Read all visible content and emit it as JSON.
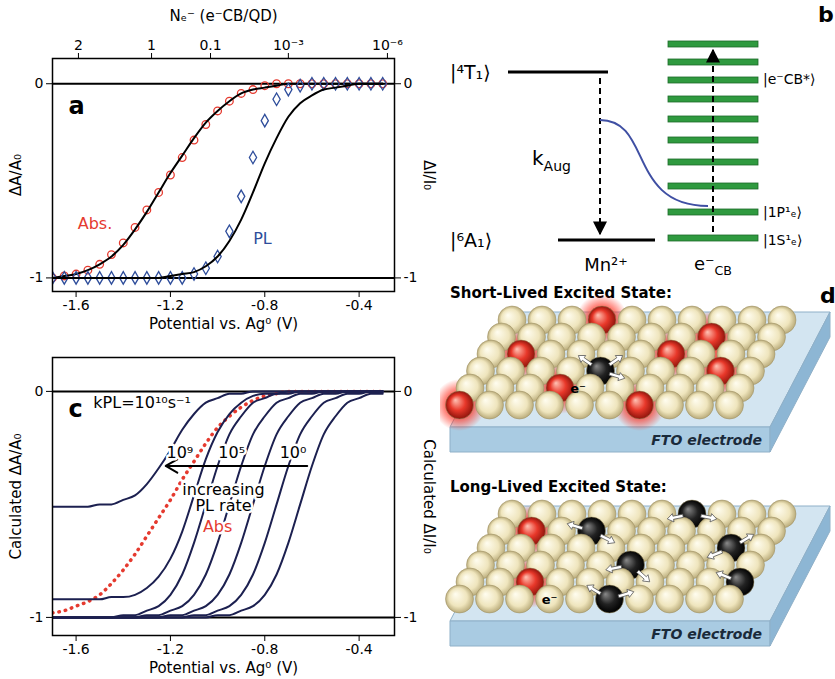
{
  "chart_data": [
    {
      "panel": "a",
      "type": "line",
      "x": [
        -1.7,
        -1.65,
        -1.6,
        -1.55,
        -1.5,
        -1.45,
        -1.4,
        -1.35,
        -1.3,
        -1.25,
        -1.2,
        -1.15,
        -1.1,
        -1.05,
        -1.0,
        -0.95,
        -0.9,
        -0.85,
        -0.8,
        -0.75,
        -0.7,
        -0.65,
        -0.6,
        -0.55,
        -0.5,
        -0.45,
        -0.4,
        -0.35,
        -0.3
      ],
      "xlim": [
        -1.7,
        -0.25
      ],
      "xticks": [
        -1.6,
        -1.2,
        -0.8,
        -0.4
      ],
      "xlabel": "Potential vs. Ag⁰ (V)",
      "ylim": [
        -1.07,
        0.13
      ],
      "yticks": [
        -1,
        0
      ],
      "ylabel": "ΔA/A₀",
      "y2lim": [
        -1.07,
        0.13
      ],
      "y2ticks": [
        -1,
        0
      ],
      "y2label": "ΔI/I₀",
      "top_axis": {
        "label": "Nₑ⁻ (e⁻CB/QD)",
        "ticks": [
          {
            "value": -1.59,
            "label": "2"
          },
          {
            "value": -1.28,
            "label": "1"
          },
          {
            "value": -1.03,
            "label": "0.1"
          },
          {
            "value": -0.7,
            "label": "10⁻³"
          },
          {
            "value": -0.28,
            "label": "10⁻⁶"
          }
        ]
      },
      "grid": true,
      "series": [
        {
          "name": "Abs.",
          "type": "scatter",
          "marker": "circle",
          "color": "#e53a2f",
          "label_x": -1.52,
          "label_y": -0.72,
          "values": [
            -1.0,
            -0.99,
            -0.98,
            -0.96,
            -0.93,
            -0.88,
            -0.82,
            -0.74,
            -0.65,
            -0.56,
            -0.47,
            -0.38,
            -0.29,
            -0.21,
            -0.14,
            -0.09,
            -0.05,
            -0.03,
            -0.01,
            0,
            0,
            0,
            0,
            0,
            0,
            0,
            0,
            0,
            0
          ]
        },
        {
          "type": "line",
          "color": "#000000",
          "values": [
            -1.0,
            -0.99,
            -0.98,
            -0.96,
            -0.93,
            -0.89,
            -0.83,
            -0.75,
            -0.66,
            -0.56,
            -0.46,
            -0.37,
            -0.28,
            -0.2,
            -0.14,
            -0.09,
            -0.05,
            -0.03,
            -0.02,
            -0.01,
            0,
            0,
            0,
            0,
            0,
            0,
            0,
            0,
            0
          ]
        },
        {
          "name": "PL",
          "type": "scatter",
          "marker": "diamond",
          "color": "#2e4d9b",
          "axis": "y2",
          "label_x": -0.81,
          "label_y": -0.8,
          "values": [
            -1,
            -1,
            -1,
            -1,
            -1,
            -1,
            -1,
            -1,
            -1,
            -1,
            -1,
            -1,
            -0.98,
            -0.95,
            -0.89,
            -0.76,
            -0.58,
            -0.38,
            -0.19,
            -0.08,
            -0.03,
            -0.01,
            0,
            0,
            0,
            0,
            0,
            0,
            0
          ]
        },
        {
          "type": "line",
          "color": "#000000",
          "axis": "y2",
          "values": [
            -1,
            -1,
            -1,
            -1,
            -1,
            -1,
            -1,
            -1,
            -1,
            -1,
            -0.99,
            -0.98,
            -0.97,
            -0.94,
            -0.89,
            -0.81,
            -0.7,
            -0.56,
            -0.41,
            -0.28,
            -0.17,
            -0.1,
            -0.06,
            -0.03,
            -0.02,
            -0.01,
            0,
            0,
            0
          ]
        }
      ]
    },
    {
      "panel": "c",
      "type": "line",
      "x": [
        -1.7,
        -1.65,
        -1.6,
        -1.55,
        -1.5,
        -1.45,
        -1.4,
        -1.35,
        -1.3,
        -1.25,
        -1.2,
        -1.15,
        -1.1,
        -1.05,
        -1.0,
        -0.95,
        -0.9,
        -0.85,
        -0.8,
        -0.75,
        -0.7,
        -0.65,
        -0.6,
        -0.55,
        -0.5,
        -0.45,
        -0.4,
        -0.35,
        -0.3
      ],
      "xlim": [
        -1.7,
        -0.25
      ],
      "xticks": [
        -1.6,
        -1.2,
        -0.8,
        -0.4
      ],
      "xlabel": "Potential vs. Ag⁰ (V)",
      "ylim": [
        -1.08,
        0.15
      ],
      "yticks": [
        -1,
        0
      ],
      "ylabel": "Calculated ΔA/A₀",
      "y2lim": [
        -1.08,
        0.15
      ],
      "y2ticks": [
        -1,
        0
      ],
      "y2label": "Calculated ΔI/I₀",
      "grid": true,
      "series": [
        {
          "name": "Abs",
          "type": "line",
          "line_style": "dotted",
          "color": "#e53a2f",
          "label_x": -1.0,
          "label_y": -0.6,
          "values": [
            -0.98,
            -0.97,
            -0.95,
            -0.93,
            -0.9,
            -0.85,
            -0.79,
            -0.72,
            -0.64,
            -0.56,
            -0.48,
            -0.39,
            -0.31,
            -0.23,
            -0.16,
            -0.11,
            -0.07,
            -0.04,
            -0.02,
            -0.01,
            0,
            0,
            0,
            0,
            0,
            0,
            0,
            0,
            0
          ]
        },
        {
          "type": "line",
          "color": "#1c2050",
          "axis": "y2",
          "values": [
            -0.51,
            -0.51,
            -0.51,
            -0.51,
            -0.5,
            -0.5,
            -0.48,
            -0.46,
            -0.41,
            -0.34,
            -0.26,
            -0.17,
            -0.1,
            -0.05,
            -0.03,
            -0.01,
            -0.01,
            0,
            0,
            0,
            0,
            0,
            0,
            0,
            0,
            0,
            0,
            0,
            0
          ]
        },
        {
          "type": "line",
          "color": "#1c2050",
          "axis": "y2",
          "values": [
            -0.92,
            -0.92,
            -0.92,
            -0.92,
            -0.92,
            -0.91,
            -0.91,
            -0.9,
            -0.87,
            -0.82,
            -0.74,
            -0.62,
            -0.46,
            -0.3,
            -0.18,
            -0.1,
            -0.05,
            -0.02,
            -0.01,
            -0.01,
            0,
            0,
            0,
            0,
            0,
            0,
            0,
            0,
            0
          ]
        },
        {
          "type": "line",
          "color": "#1c2050",
          "axis": "y2",
          "values": [
            -1,
            -1,
            -1,
            -1,
            -1,
            -1,
            -0.99,
            -0.99,
            -0.97,
            -0.95,
            -0.9,
            -0.81,
            -0.67,
            -0.5,
            -0.33,
            -0.19,
            -0.11,
            -0.05,
            -0.03,
            -0.01,
            -0.01,
            0,
            0,
            0,
            0,
            0,
            0,
            0,
            0
          ]
        },
        {
          "type": "line",
          "color": "#1c2050",
          "axis": "y2",
          "values": [
            -1,
            -1,
            -1,
            -1,
            -1,
            -1,
            -1,
            -1,
            -0.99,
            -0.99,
            -0.97,
            -0.95,
            -0.9,
            -0.81,
            -0.67,
            -0.5,
            -0.33,
            -0.19,
            -0.11,
            -0.05,
            -0.03,
            -0.01,
            -0.01,
            0,
            0,
            0,
            0,
            0,
            0
          ]
        },
        {
          "type": "line",
          "color": "#1c2050",
          "axis": "y2",
          "values": [
            -1,
            -1,
            -1,
            -1,
            -1,
            -1,
            -1,
            -1,
            -1,
            -1,
            -0.99,
            -0.99,
            -0.97,
            -0.95,
            -0.9,
            -0.81,
            -0.67,
            -0.5,
            -0.33,
            -0.19,
            -0.11,
            -0.05,
            -0.03,
            -0.01,
            -0.01,
            0,
            0,
            0,
            0
          ]
        },
        {
          "type": "line",
          "color": "#1c2050",
          "axis": "y2",
          "values": [
            -1,
            -1,
            -1,
            -1,
            -1,
            -1,
            -1,
            -1,
            -1,
            -1,
            -1,
            -1,
            -0.99,
            -0.99,
            -0.97,
            -0.95,
            -0.9,
            -0.81,
            -0.67,
            -0.5,
            -0.33,
            -0.19,
            -0.11,
            -0.05,
            -0.03,
            -0.01,
            -0.01,
            0,
            0
          ]
        },
        {
          "type": "line",
          "color": "#1c2050",
          "axis": "y2",
          "values": [
            -1,
            -1,
            -1,
            -1,
            -1,
            -1,
            -1,
            -1,
            -1,
            -1,
            -1,
            -1,
            -1,
            -1,
            -0.99,
            -0.99,
            -0.97,
            -0.95,
            -0.9,
            -0.81,
            -0.67,
            -0.5,
            -0.33,
            -0.19,
            -0.11,
            -0.05,
            -0.03,
            -0.01,
            -0.01
          ]
        }
      ],
      "annotations": [
        {
          "text": "kPL=10¹⁰s⁻¹",
          "x": -1.32,
          "y": -0.05,
          "color": "#000000"
        },
        {
          "text": "10⁹",
          "x": -1.16,
          "y": -0.27,
          "color": "#000000"
        },
        {
          "text": "10⁵",
          "x": -0.94,
          "y": -0.27,
          "color": "#000000"
        },
        {
          "text": "10⁰",
          "x": -0.68,
          "y": -0.27,
          "color": "#000000"
        },
        {
          "text": "increasing PL rate",
          "x": -0.975,
          "y": -0.47,
          "color": "#000000"
        }
      ],
      "arrow": {
        "x1": -0.62,
        "x2": -1.22,
        "y": -0.33
      }
    }
  ],
  "diagram_b": {
    "panel": "b",
    "mn_states": [
      "|⁴T₁⟩",
      "|⁶A₁⟩"
    ],
    "ion": "Mn²⁺",
    "rate": {
      "symbol": "k",
      "subscript": "Aug"
    },
    "cb_states": [
      "|e⁻CB*⟩",
      "|1P¹ₑ⟩",
      "|1S¹ₑ⟩"
    ],
    "carrier": {
      "symbol": "e⁻",
      "subscript": "CB"
    }
  },
  "diagram_d": {
    "panel": "d",
    "scenes": [
      {
        "title": "Short-Lived Excited State:",
        "substrate": "FTO electrode",
        "carrier": "e⁻"
      },
      {
        "title": "Long-Lived Excited State:",
        "substrate": "FTO electrode",
        "carrier": "e⁻"
      }
    ]
  }
}
